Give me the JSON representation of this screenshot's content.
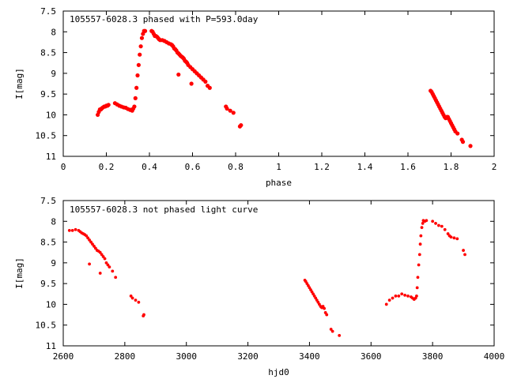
{
  "chart_data": [
    {
      "type": "scatter",
      "title": "105557-6028.3 phased with P=593.0day",
      "xlabel": "phase",
      "ylabel": "I[mag]",
      "xlim": [
        0,
        2
      ],
      "ylim": [
        7.5,
        11
      ],
      "y_inverted": true,
      "xticks": [
        0,
        0.2,
        0.4,
        0.6,
        0.8,
        1,
        1.2,
        1.4,
        1.6,
        1.8,
        2
      ],
      "xtick_labels": [
        "0",
        "0.2",
        "0.4",
        "0.6",
        "0.8",
        "1",
        "1.2",
        "1.4",
        "1.6",
        "1.8",
        "2"
      ],
      "yticks": [
        7.5,
        8,
        8.5,
        9,
        9.5,
        10,
        10.5,
        11
      ],
      "ytick_labels": [
        "7.5",
        "8",
        "8.5",
        "9",
        "9.5",
        "10",
        "10.5",
        "11"
      ],
      "grid": false,
      "marker_color": "#ff0000",
      "series": [
        {
          "x": [
            0.16,
            0.165,
            0.17,
            0.175,
            0.18,
            0.185,
            0.19,
            0.195,
            0.2,
            0.205,
            0.21,
            0.24,
            0.25,
            0.26,
            0.27,
            0.28,
            0.29,
            0.3,
            0.31,
            0.315,
            0.32,
            0.325,
            0.33,
            0.335,
            0.34,
            0.345,
            0.35,
            0.355,
            0.36,
            0.365,
            0.37,
            0.375,
            0.38,
            0.41,
            0.415,
            0.42,
            0.425,
            0.43,
            0.435,
            0.44,
            0.445,
            0.45,
            0.46,
            0.47,
            0.48,
            0.49,
            0.5,
            0.505,
            0.51,
            0.515,
            0.52,
            0.525,
            0.53,
            0.535,
            0.54,
            0.545,
            0.55,
            0.555,
            0.56,
            0.565,
            0.57,
            0.575,
            0.58,
            0.59,
            0.6,
            0.61,
            0.62,
            0.63,
            0.64,
            0.65,
            0.66,
            0.67,
            0.68,
            0.535,
            0.595,
            0.755,
            0.76,
            0.775,
            0.79,
            0.82,
            0.825,
            1.705,
            1.71,
            1.715,
            1.72,
            1.725,
            1.73,
            1.735,
            1.74,
            1.745,
            1.75,
            1.755,
            1.76,
            1.765,
            1.77,
            1.775,
            1.78,
            1.785,
            1.79,
            1.795,
            1.8,
            1.805,
            1.81,
            1.815,
            1.82,
            1.83,
            1.85,
            1.855,
            1.89
          ],
          "y": [
            10.0,
            9.93,
            9.87,
            9.87,
            9.84,
            9.82,
            9.8,
            9.8,
            9.78,
            9.78,
            9.76,
            9.72,
            9.75,
            9.78,
            9.8,
            9.82,
            9.83,
            9.86,
            9.88,
            9.88,
            9.9,
            9.85,
            9.8,
            9.6,
            9.35,
            9.05,
            8.8,
            8.55,
            8.35,
            8.15,
            8.05,
            7.98,
            7.98,
            7.98,
            8.0,
            8.05,
            8.1,
            8.1,
            8.12,
            8.15,
            8.18,
            8.2,
            8.2,
            8.22,
            8.25,
            8.28,
            8.3,
            8.32,
            8.35,
            8.4,
            8.42,
            8.45,
            8.5,
            8.52,
            8.55,
            8.58,
            8.6,
            8.62,
            8.65,
            8.7,
            8.72,
            8.75,
            8.8,
            8.85,
            8.9,
            8.95,
            9.0,
            9.05,
            9.1,
            9.15,
            9.2,
            9.3,
            9.35,
            9.03,
            9.25,
            9.8,
            9.85,
            9.9,
            9.95,
            10.28,
            10.25,
            9.42,
            9.45,
            9.5,
            9.55,
            9.6,
            9.65,
            9.7,
            9.75,
            9.8,
            9.85,
            9.9,
            9.95,
            10.0,
            10.05,
            10.08,
            10.05,
            10.05,
            10.1,
            10.15,
            10.2,
            10.25,
            10.3,
            10.35,
            10.4,
            10.45,
            10.6,
            10.65,
            10.75
          ]
        }
      ]
    },
    {
      "type": "scatter",
      "title": "105557-6028.3 not phased light curve",
      "xlabel": "hjd0",
      "ylabel": "I[mag]",
      "xlim": [
        2600,
        4000
      ],
      "ylim": [
        7.5,
        11
      ],
      "y_inverted": true,
      "xticks": [
        2600,
        2800,
        3000,
        3200,
        3400,
        3600,
        3800,
        4000
      ],
      "xtick_labels": [
        "2600",
        "2800",
        "3000",
        "3200",
        "3400",
        "3600",
        "3800",
        "4000"
      ],
      "yticks": [
        7.5,
        8,
        8.5,
        9,
        9.5,
        10,
        10.5,
        11
      ],
      "ytick_labels": [
        "7.5",
        "8",
        "8.5",
        "9",
        "9.5",
        "10",
        "10.5",
        "11"
      ],
      "grid": false,
      "marker_color": "#ff0000",
      "series": [
        {
          "x": [
            2620,
            2630,
            2640,
            2650,
            2655,
            2660,
            2665,
            2670,
            2675,
            2680,
            2685,
            2690,
            2695,
            2700,
            2705,
            2710,
            2715,
            2720,
            2725,
            2730,
            2735,
            2740,
            2745,
            2750,
            2760,
            2770,
            2685,
            2720,
            2820,
            2825,
            2835,
            2845,
            2860,
            2862,
            3385,
            3388,
            3392,
            3396,
            3400,
            3404,
            3408,
            3412,
            3416,
            3420,
            3424,
            3428,
            3432,
            3436,
            3440,
            3444,
            3448,
            3452,
            3456,
            3470,
            3475,
            3497,
            3650,
            3660,
            3670,
            3680,
            3690,
            3700,
            3710,
            3720,
            3730,
            3735,
            3740,
            3745,
            3748,
            3750,
            3752,
            3755,
            3758,
            3760,
            3762,
            3765,
            3768,
            3770,
            3775,
            3780,
            3800,
            3810,
            3820,
            3830,
            3840,
            3850,
            3855,
            3860,
            3870,
            3880,
            3900,
            3905
          ],
          "y": [
            8.22,
            8.22,
            8.2,
            8.22,
            8.25,
            8.28,
            8.3,
            8.32,
            8.35,
            8.4,
            8.45,
            8.5,
            8.55,
            8.6,
            8.65,
            8.7,
            8.72,
            8.75,
            8.8,
            8.85,
            8.9,
            9.0,
            9.05,
            9.1,
            9.2,
            9.35,
            9.03,
            9.25,
            9.8,
            9.85,
            9.9,
            9.95,
            10.28,
            10.25,
            9.42,
            9.45,
            9.5,
            9.55,
            9.6,
            9.65,
            9.7,
            9.75,
            9.8,
            9.85,
            9.9,
            9.95,
            10.0,
            10.05,
            10.08,
            10.05,
            10.1,
            10.2,
            10.25,
            10.6,
            10.65,
            10.75,
            10.0,
            9.9,
            9.85,
            9.8,
            9.8,
            9.75,
            9.78,
            9.8,
            9.82,
            9.85,
            9.88,
            9.85,
            9.8,
            9.6,
            9.35,
            9.05,
            8.8,
            8.55,
            8.35,
            8.15,
            8.05,
            7.98,
            8.0,
            7.98,
            8.0,
            8.05,
            8.1,
            8.12,
            8.2,
            8.3,
            8.35,
            8.38,
            8.4,
            8.42,
            8.7,
            8.8
          ]
        }
      ]
    }
  ]
}
